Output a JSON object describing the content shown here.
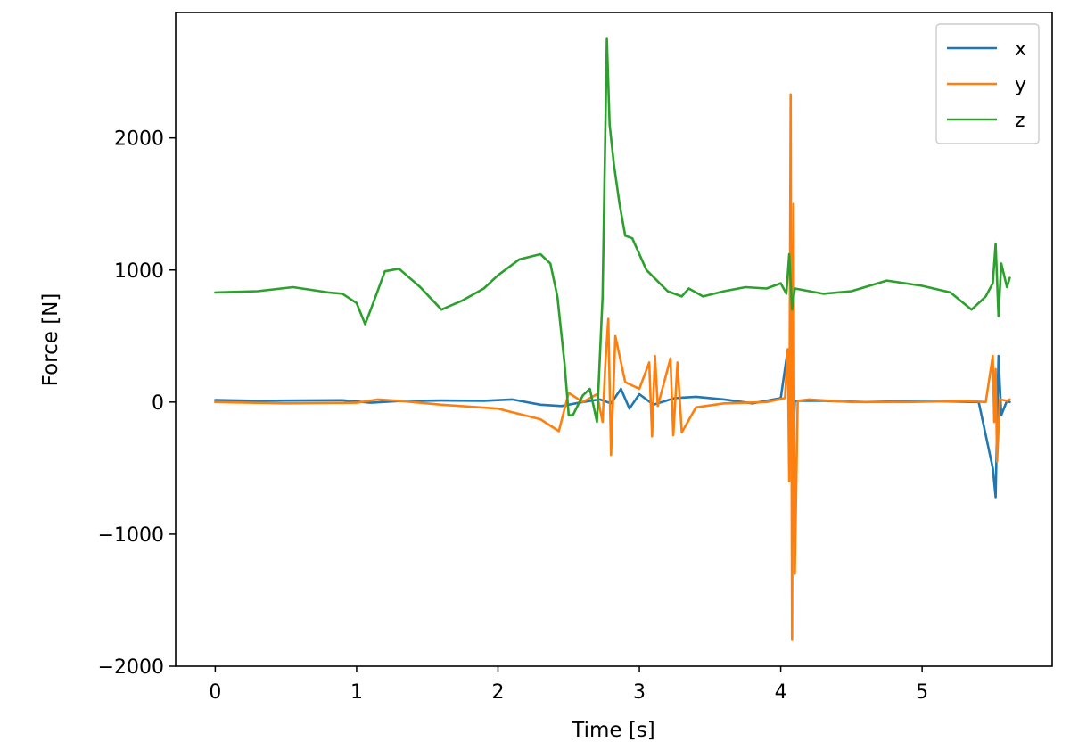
{
  "chart_data": {
    "type": "line",
    "title": "",
    "xlabel": "Time [s]",
    "ylabel": "Force [N]",
    "xlim": [
      -0.28,
      5.92
    ],
    "ylim": [
      -2000,
      2950
    ],
    "xticks": [
      0,
      1,
      2,
      3,
      4,
      5
    ],
    "xtick_labels": [
      "0",
      "1",
      "2",
      "3",
      "4",
      "5"
    ],
    "yticks": [
      -2000,
      -1000,
      0,
      1000,
      2000
    ],
    "ytick_labels": [
      "−2000",
      "−1000",
      "0",
      "1000",
      "2000"
    ],
    "grid": false,
    "legend_position": "top-right",
    "series": [
      {
        "name": "x",
        "color": "#1f77b4",
        "x": [
          0,
          0.3,
          0.6,
          0.9,
          1.1,
          1.3,
          1.6,
          1.9,
          2.1,
          2.3,
          2.45,
          2.6,
          2.72,
          2.8,
          2.87,
          2.93,
          3.0,
          3.1,
          3.25,
          3.4,
          3.6,
          3.8,
          4.0,
          4.05,
          4.08,
          4.1,
          4.3,
          4.6,
          5.0,
          5.4,
          5.5,
          5.52,
          5.54,
          5.56,
          5.6,
          5.62
        ],
        "y": [
          15,
          10,
          12,
          14,
          -5,
          8,
          12,
          10,
          20,
          -20,
          -30,
          0,
          20,
          -10,
          100,
          -50,
          60,
          -20,
          30,
          40,
          20,
          -10,
          30,
          400,
          -600,
          10,
          10,
          0,
          10,
          0,
          -500,
          -720,
          350,
          -100,
          10,
          0
        ]
      },
      {
        "name": "y",
        "color": "#ff7f0e",
        "x": [
          0,
          0.5,
          1.0,
          1.15,
          1.3,
          1.6,
          2.0,
          2.3,
          2.43,
          2.5,
          2.6,
          2.7,
          2.74,
          2.76,
          2.78,
          2.8,
          2.83,
          2.9,
          3.0,
          3.07,
          3.09,
          3.11,
          3.13,
          3.22,
          3.24,
          3.27,
          3.3,
          3.4,
          3.6,
          3.9,
          4.03,
          4.05,
          4.06,
          4.07,
          4.08,
          4.09,
          4.1,
          4.12,
          4.2,
          4.5,
          4.9,
          5.3,
          5.45,
          5.5,
          5.51,
          5.52,
          5.53,
          5.55,
          5.6,
          5.62
        ],
        "y": [
          0,
          -10,
          -5,
          20,
          10,
          -20,
          -50,
          -130,
          -220,
          70,
          0,
          60,
          -150,
          300,
          630,
          -400,
          500,
          150,
          100,
          300,
          -260,
          350,
          -30,
          330,
          -250,
          300,
          -230,
          -40,
          -10,
          0,
          30,
          400,
          -600,
          2330,
          -1800,
          1500,
          -1300,
          10,
          20,
          0,
          0,
          10,
          0,
          350,
          -150,
          250,
          -450,
          20,
          10,
          20
        ]
      },
      {
        "name": "z",
        "color": "#2ca02c",
        "x": [
          0,
          0.3,
          0.55,
          0.8,
          0.9,
          1.0,
          1.06,
          1.1,
          1.2,
          1.3,
          1.45,
          1.6,
          1.75,
          1.9,
          2.0,
          2.15,
          2.3,
          2.37,
          2.42,
          2.47,
          2.5,
          2.53,
          2.6,
          2.65,
          2.7,
          2.74,
          2.77,
          2.79,
          2.82,
          2.86,
          2.9,
          2.95,
          3.05,
          3.2,
          3.3,
          3.35,
          3.45,
          3.6,
          3.75,
          3.9,
          4.0,
          4.04,
          4.06,
          4.08,
          4.1,
          4.3,
          4.5,
          4.75,
          5.0,
          5.2,
          5.35,
          5.45,
          5.5,
          5.52,
          5.54,
          5.56,
          5.6,
          5.62
        ],
        "y": [
          830,
          840,
          870,
          830,
          820,
          750,
          590,
          700,
          990,
          1010,
          870,
          700,
          770,
          860,
          960,
          1080,
          1120,
          1050,
          800,
          300,
          -100,
          -100,
          50,
          100,
          -150,
          800,
          2750,
          2100,
          1800,
          1500,
          1260,
          1240,
          1000,
          840,
          800,
          860,
          800,
          840,
          870,
          860,
          900,
          820,
          1120,
          700,
          860,
          820,
          840,
          920,
          880,
          830,
          700,
          800,
          900,
          1200,
          650,
          1050,
          870,
          940
        ]
      }
    ]
  }
}
